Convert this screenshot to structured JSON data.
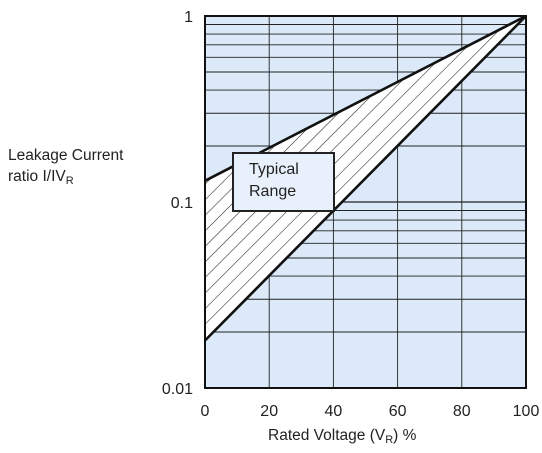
{
  "chart_data": {
    "type": "area",
    "title": "",
    "ylabel": {
      "text": "Leakage Current",
      "line2": "ratio I/IV",
      "line2_sub": "R"
    },
    "xlabel": {
      "pre": "Rated Voltage (V",
      "sub": "R",
      "post": ") %"
    },
    "xlim": [
      0,
      100
    ],
    "ylim": [
      0.01,
      1
    ],
    "yscale": "log",
    "x_ticks": [
      "0",
      "20",
      "40",
      "60",
      "80",
      "100"
    ],
    "y_ticks": [
      "0.01",
      "0.1",
      "1"
    ],
    "grid": true,
    "series": [
      {
        "role": "upper",
        "x": [
          0,
          100
        ],
        "y": [
          0.13,
          1
        ]
      },
      {
        "role": "lower",
        "x": [
          0,
          100
        ],
        "y": [
          0.018,
          1
        ]
      }
    ],
    "region_fill": "hatched",
    "annotation": {
      "line1": "Typical",
      "line2": "Range"
    }
  },
  "colors": {
    "plot_bg": "#dbe9f8",
    "grid": "#222222",
    "line": "#111111"
  }
}
